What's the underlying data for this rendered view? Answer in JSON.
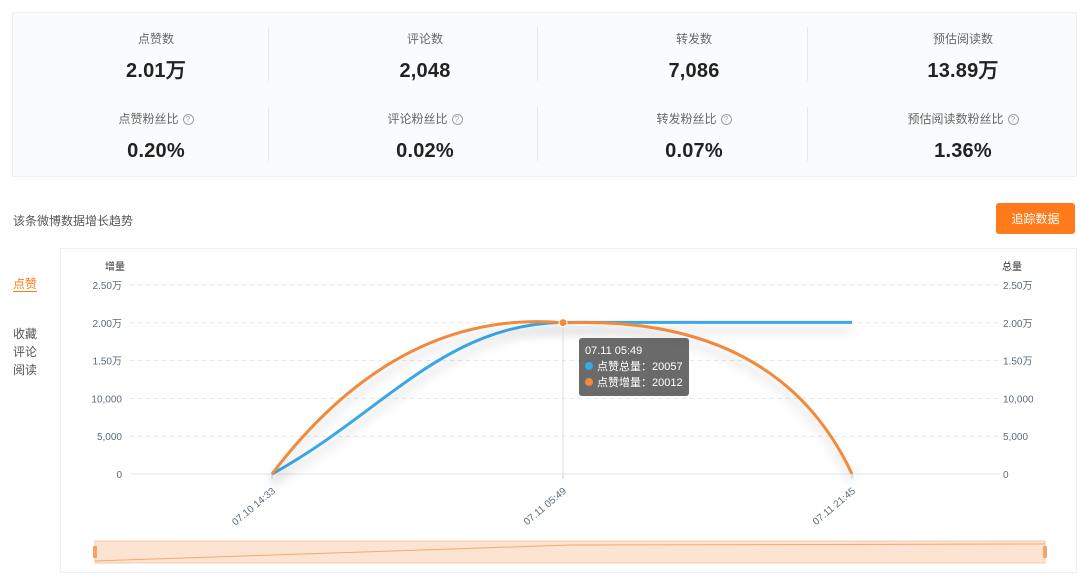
{
  "stats": [
    {
      "label": "点赞数",
      "value": "2.01万",
      "help": false
    },
    {
      "label": "评论数",
      "value": "2,048",
      "help": false
    },
    {
      "label": "转发数",
      "value": "7,086",
      "help": false
    },
    {
      "label": "预估阅读数",
      "value": "13.89万",
      "help": false
    },
    {
      "label": "点赞粉丝比",
      "value": "0.20%",
      "help": true
    },
    {
      "label": "评论粉丝比",
      "value": "0.02%",
      "help": true
    },
    {
      "label": "转发粉丝比",
      "value": "0.07%",
      "help": true
    },
    {
      "label": "预估阅读数粉丝比",
      "value": "1.36%",
      "help": true
    }
  ],
  "help_glyph": "?",
  "section_title": "该条微博数据增长趋势",
  "track_button": "追踪数据",
  "side_tabs": [
    {
      "label": "点赞",
      "active": true
    },
    {
      "label": "收藏",
      "active": false
    },
    {
      "label": "评论",
      "active": false
    },
    {
      "label": "阅读",
      "active": false
    }
  ],
  "colors": {
    "accent": "#ff7a1a",
    "total": "#3aa7e6",
    "increment": "#f08a3c",
    "axis_text": "#5b6b7a"
  },
  "chart_data": {
    "type": "line",
    "left_axis_title": "增量",
    "right_axis_title": "总量",
    "y_ticks": [
      "0",
      "5,000",
      "10,000",
      "1.50万",
      "2.00万",
      "2.50万"
    ],
    "ylim": [
      0,
      25000
    ],
    "x": [
      "07.10 14:33",
      "07.11 05:49",
      "07.11 21:45"
    ],
    "series": [
      {
        "name": "点赞总量",
        "values": [
          0,
          20057,
          20057
        ]
      },
      {
        "name": "点赞增量",
        "values": [
          0,
          20012,
          0
        ]
      }
    ],
    "zoom_range": [
      0,
      100
    ]
  },
  "tooltip": {
    "title": "07.11 05:49",
    "rows": [
      {
        "label": "点赞总量：",
        "value": "20057"
      },
      {
        "label": "点赞增量：",
        "value": "20012"
      }
    ]
  }
}
